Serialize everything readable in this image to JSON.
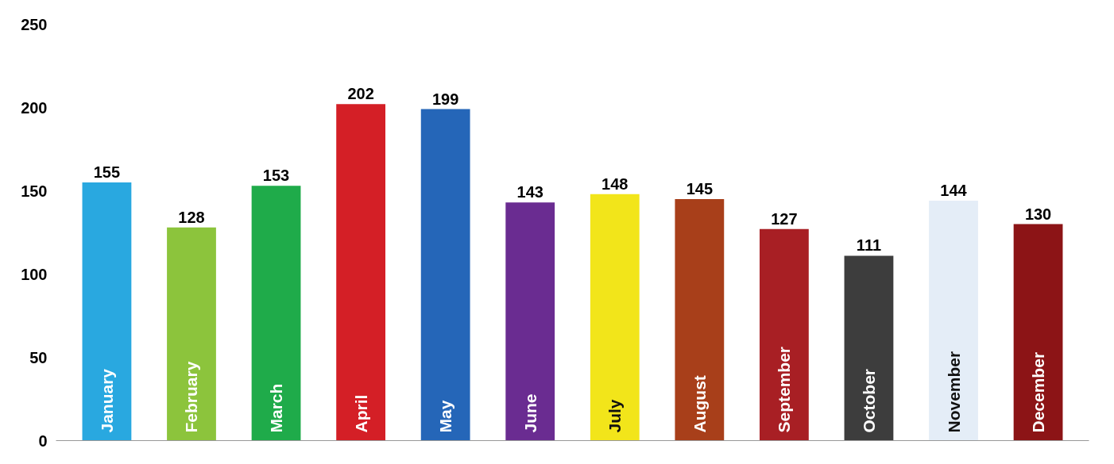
{
  "chart_data": {
    "type": "bar",
    "categories": [
      "January",
      "February",
      "March",
      "April",
      "May",
      "June",
      "July",
      "August",
      "September",
      "October",
      "November",
      "December"
    ],
    "values": [
      155,
      128,
      153,
      202,
      199,
      143,
      148,
      145,
      127,
      111,
      144,
      130
    ],
    "colors": [
      "#29a8e0",
      "#8cc43c",
      "#1fab4a",
      "#d41f26",
      "#2566b8",
      "#6a2c91",
      "#f2e51a",
      "#a83f1a",
      "#a81f24",
      "#3d3d3d",
      "#e4edf7",
      "#8c1416"
    ],
    "ylim": [
      0,
      250
    ],
    "yticks": [
      0,
      50,
      100,
      150,
      200,
      250
    ],
    "data_labels": true,
    "grid": false
  }
}
